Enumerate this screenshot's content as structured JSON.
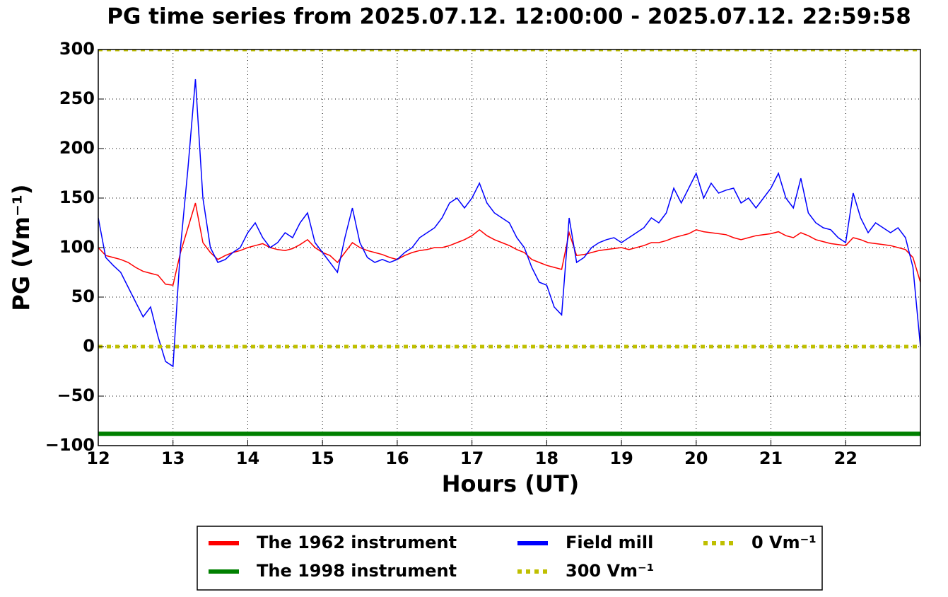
{
  "chart_data": {
    "type": "line",
    "title": "PG time series from 2025.07.12. 12:00:00 - 2025.07.12. 22:59:58",
    "xlabel": "Hours (UT)",
    "ylabel": "PG (Vm⁻¹)",
    "xlim": [
      12,
      23
    ],
    "ylim": [
      -100,
      300
    ],
    "xticks": [
      12,
      13,
      14,
      15,
      16,
      17,
      18,
      19,
      20,
      21,
      22
    ],
    "yticks": [
      {
        "value": -100,
        "label": "−100"
      },
      {
        "value": -50,
        "label": "−50"
      },
      0,
      50,
      100,
      150,
      200,
      250,
      300
    ],
    "grid": true,
    "legend": "below",
    "series": [
      {
        "name": "The 1962 instrument",
        "color": "#ff0000",
        "linewidth": 1.5,
        "dashed": false,
        "x": [
          12.0,
          12.1,
          12.2,
          12.3,
          12.4,
          12.5,
          12.6,
          12.7,
          12.8,
          12.9,
          13.0,
          13.1,
          13.2,
          13.3,
          13.4,
          13.5,
          13.6,
          13.7,
          13.8,
          13.9,
          14.0,
          14.1,
          14.2,
          14.3,
          14.4,
          14.5,
          14.6,
          14.7,
          14.8,
          14.9,
          15.0,
          15.1,
          15.2,
          15.3,
          15.4,
          15.5,
          15.6,
          15.7,
          15.8,
          15.9,
          16.0,
          16.1,
          16.2,
          16.3,
          16.4,
          16.5,
          16.6,
          16.7,
          16.8,
          16.9,
          17.0,
          17.1,
          17.2,
          17.3,
          17.4,
          17.5,
          17.6,
          17.7,
          17.8,
          17.9,
          18.0,
          18.1,
          18.2,
          18.3,
          18.4,
          18.5,
          18.6,
          18.7,
          18.8,
          18.9,
          19.0,
          19.1,
          19.2,
          19.3,
          19.4,
          19.5,
          19.6,
          19.7,
          19.8,
          19.9,
          20.0,
          20.1,
          20.2,
          20.3,
          20.4,
          20.5,
          20.6,
          20.7,
          20.8,
          20.9,
          21.0,
          21.1,
          21.2,
          21.3,
          21.4,
          21.5,
          21.6,
          21.7,
          21.8,
          21.9,
          22.0,
          22.1,
          22.2,
          22.3,
          22.4,
          22.5,
          22.6,
          22.7,
          22.8,
          22.9,
          23.0
        ],
        "values": [
          100,
          92,
          90,
          88,
          85,
          80,
          76,
          74,
          72,
          63,
          62,
          95,
          120,
          145,
          105,
          95,
          88,
          92,
          95,
          97,
          100,
          102,
          104,
          100,
          98,
          97,
          99,
          103,
          108,
          100,
          95,
          92,
          85,
          95,
          105,
          100,
          97,
          95,
          93,
          90,
          88,
          92,
          95,
          97,
          98,
          100,
          100,
          102,
          105,
          108,
          112,
          118,
          112,
          108,
          105,
          102,
          98,
          95,
          88,
          85,
          82,
          80,
          78,
          115,
          92,
          93,
          95,
          97,
          98,
          99,
          100,
          98,
          100,
          102,
          105,
          105,
          107,
          110,
          112,
          114,
          118,
          116,
          115,
          114,
          113,
          110,
          108,
          110,
          112,
          113,
          114,
          116,
          112,
          110,
          115,
          112,
          108,
          106,
          104,
          103,
          102,
          110,
          108,
          105,
          104,
          103,
          102,
          100,
          98,
          90,
          65
        ]
      },
      {
        "name": "The 1998 instrument",
        "color": "#008000",
        "linewidth": 6,
        "dashed": false,
        "x": [
          12,
          23
        ],
        "values": [
          -88,
          -88
        ]
      },
      {
        "name": "Field mill",
        "color": "#0000ff",
        "linewidth": 1.5,
        "dashed": false,
        "x": [
          12.0,
          12.1,
          12.2,
          12.3,
          12.4,
          12.5,
          12.6,
          12.7,
          12.8,
          12.9,
          13.0,
          13.1,
          13.2,
          13.3,
          13.4,
          13.5,
          13.6,
          13.7,
          13.8,
          13.9,
          14.0,
          14.1,
          14.2,
          14.3,
          14.4,
          14.5,
          14.6,
          14.7,
          14.8,
          14.9,
          15.0,
          15.1,
          15.2,
          15.3,
          15.4,
          15.5,
          15.6,
          15.7,
          15.8,
          15.9,
          16.0,
          16.1,
          16.2,
          16.3,
          16.4,
          16.5,
          16.6,
          16.7,
          16.8,
          16.9,
          17.0,
          17.1,
          17.2,
          17.3,
          17.4,
          17.5,
          17.6,
          17.7,
          17.8,
          17.9,
          18.0,
          18.1,
          18.2,
          18.3,
          18.4,
          18.5,
          18.6,
          18.7,
          18.8,
          18.9,
          19.0,
          19.1,
          19.2,
          19.3,
          19.4,
          19.5,
          19.6,
          19.7,
          19.8,
          19.9,
          20.0,
          20.1,
          20.2,
          20.3,
          20.4,
          20.5,
          20.6,
          20.7,
          20.8,
          20.9,
          21.0,
          21.1,
          21.2,
          21.3,
          21.4,
          21.5,
          21.6,
          21.7,
          21.8,
          21.9,
          22.0,
          22.1,
          22.2,
          22.3,
          22.4,
          22.5,
          22.6,
          22.7,
          22.8,
          22.9,
          23.0
        ],
        "values": [
          130,
          90,
          82,
          75,
          60,
          45,
          30,
          40,
          10,
          -15,
          -20,
          100,
          180,
          270,
          150,
          100,
          85,
          88,
          95,
          100,
          115,
          125,
          110,
          100,
          105,
          115,
          110,
          125,
          135,
          105,
          95,
          85,
          75,
          110,
          140,
          105,
          90,
          85,
          88,
          85,
          88,
          95,
          100,
          110,
          115,
          120,
          130,
          145,
          150,
          140,
          150,
          165,
          145,
          135,
          130,
          125,
          110,
          100,
          80,
          65,
          62,
          40,
          32,
          130,
          85,
          90,
          100,
          105,
          108,
          110,
          105,
          110,
          115,
          120,
          130,
          125,
          135,
          160,
          145,
          160,
          175,
          150,
          165,
          155,
          158,
          160,
          145,
          150,
          140,
          150,
          160,
          175,
          150,
          140,
          170,
          135,
          125,
          120,
          118,
          110,
          105,
          155,
          130,
          115,
          125,
          120,
          115,
          120,
          110,
          80,
          0
        ]
      },
      {
        "name": "300 Vm⁻¹",
        "color": "#bfbf00",
        "linewidth": 5,
        "dashed": true,
        "x": [
          12,
          23
        ],
        "values": [
          300,
          300
        ]
      },
      {
        "name": "0 Vm⁻¹",
        "color": "#bfbf00",
        "linewidth": 5,
        "dashed": true,
        "x": [
          12,
          23
        ],
        "values": [
          0,
          0
        ]
      }
    ]
  }
}
